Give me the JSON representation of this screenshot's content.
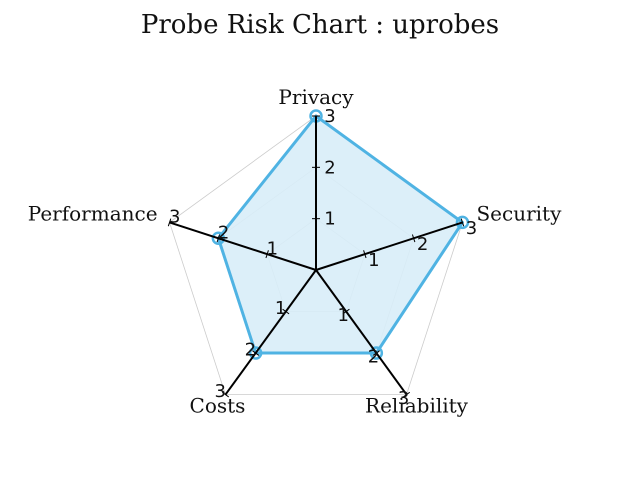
{
  "chart_data": {
    "type": "radar",
    "title": "Probe Risk Chart : uprobes",
    "axes": [
      "Privacy",
      "Security",
      "Reliability",
      "Costs",
      "Performance"
    ],
    "ticks": [
      "1",
      "2",
      "3"
    ],
    "rmax": 3,
    "series": [
      {
        "values": [
          3,
          3,
          2,
          2,
          2
        ]
      }
    ],
    "colors": {
      "line": "#4fb3e3",
      "fill": "#d8edf8",
      "grid": "#cccccc",
      "axis": "#000000"
    }
  }
}
